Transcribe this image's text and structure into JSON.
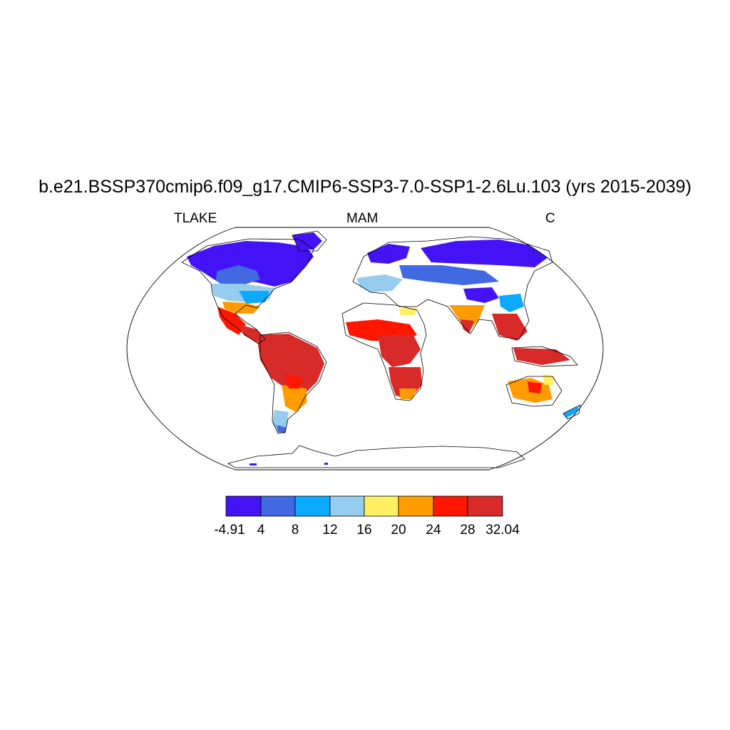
{
  "title": "b.e21.BSSP370cmip6.f09_g17.CMIP6-SSP3-7.0-SSP1-2.6Lu.103 (yrs 2015-2039)",
  "left_subtitle": "TLAKE",
  "center_subtitle": "MAM",
  "right_subtitle": "C",
  "colorbar": {
    "labels": [
      "-4.91",
      "4",
      "8",
      "12",
      "16",
      "20",
      "24",
      "28",
      "32.04"
    ],
    "colors": [
      "#4413f5",
      "#4169e1",
      "#0ba9ff",
      "#96cdee",
      "#ffef62",
      "#ff9c00",
      "#ff1700",
      "#d92a2a"
    ]
  },
  "map": {
    "projection": "robinson",
    "field_regions": [
      {
        "region": "Canada / Arctic North America",
        "range": "-4.91 to 4"
      },
      {
        "region": "Northern US",
        "range": "8 to 12"
      },
      {
        "region": "Gulf coast / Central America",
        "range": "24 to 32.04"
      },
      {
        "region": "Amazon / South America",
        "range": "28 to 32.04"
      },
      {
        "region": "Patagonia",
        "range": "4 to 12"
      },
      {
        "region": "Sahel / Central Africa",
        "range": "24 to 32.04"
      },
      {
        "region": "Southern Africa",
        "range": "24 to 32.04"
      },
      {
        "region": "Northern Eurasia / Siberia",
        "range": "-4.91 to 8"
      },
      {
        "region": "Tibetan Plateau",
        "range": "-4.91 to 4"
      },
      {
        "region": "South / Southeast Asia",
        "range": "24 to 32.04"
      },
      {
        "region": "Australia",
        "range": "20 to 32.04"
      },
      {
        "region": "New Zealand",
        "range": "8 to 12"
      }
    ]
  }
}
